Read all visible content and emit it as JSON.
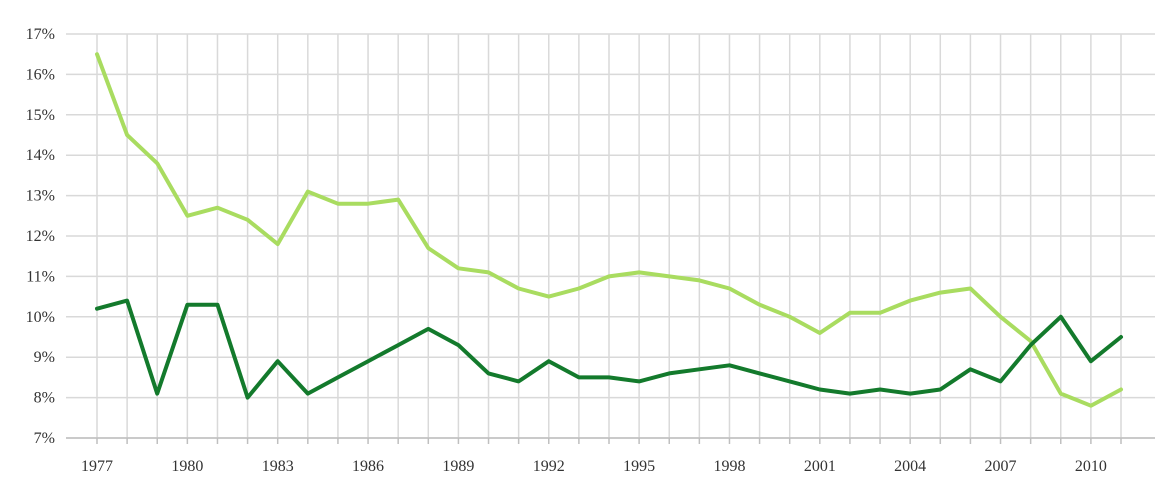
{
  "chart_data": {
    "type": "line",
    "title": "",
    "xlabel": "",
    "ylabel": "",
    "x": [
      1977,
      1978,
      1979,
      1980,
      1981,
      1982,
      1983,
      1984,
      1985,
      1986,
      1987,
      1988,
      1989,
      1990,
      1991,
      1992,
      1993,
      1994,
      1995,
      1996,
      1997,
      1998,
      1999,
      2000,
      2001,
      2002,
      2003,
      2004,
      2005,
      2006,
      2007,
      2008,
      2009,
      2010,
      2011
    ],
    "xticks": [
      1977,
      1980,
      1983,
      1986,
      1989,
      1992,
      1995,
      1998,
      2001,
      2004,
      2007,
      2010
    ],
    "xtick_labels": [
      "1977",
      "1980",
      "1983",
      "1986",
      "1989",
      "1992",
      "1995",
      "1998",
      "2001",
      "2004",
      "2007",
      "2010"
    ],
    "xlim": [
      1977,
      2011
    ],
    "ylim": [
      7,
      17
    ],
    "yticks": [
      7,
      8,
      9,
      10,
      11,
      12,
      13,
      14,
      15,
      16,
      17
    ],
    "ytick_labels": [
      "7%",
      "8%",
      "9%",
      "10%",
      "11%",
      "12%",
      "13%",
      "14%",
      "15%",
      "16%",
      "17%"
    ],
    "grid": true,
    "series": [
      {
        "color": "#a9dc60",
        "values": [
          16.5,
          14.5,
          13.8,
          12.5,
          12.7,
          12.4,
          11.8,
          13.1,
          12.8,
          12.8,
          12.9,
          11.7,
          11.2,
          11.1,
          10.7,
          10.5,
          10.7,
          11.0,
          11.1,
          11.0,
          10.9,
          10.7,
          10.3,
          10.0,
          9.6,
          10.1,
          10.1,
          10.4,
          10.6,
          10.7,
          10.0,
          9.4,
          8.1,
          7.8,
          8.2
        ]
      },
      {
        "color": "#137a2c",
        "values": [
          10.2,
          10.4,
          8.1,
          10.3,
          10.3,
          8.0,
          8.9,
          8.1,
          8.5,
          8.9,
          9.3,
          9.7,
          9.3,
          8.6,
          8.4,
          8.9,
          8.5,
          8.5,
          8.4,
          8.6,
          8.7,
          8.8,
          8.6,
          8.4,
          8.2,
          8.1,
          8.2,
          8.1,
          8.2,
          8.7,
          8.4,
          9.3,
          10.0,
          8.9,
          9.5
        ]
      }
    ]
  }
}
